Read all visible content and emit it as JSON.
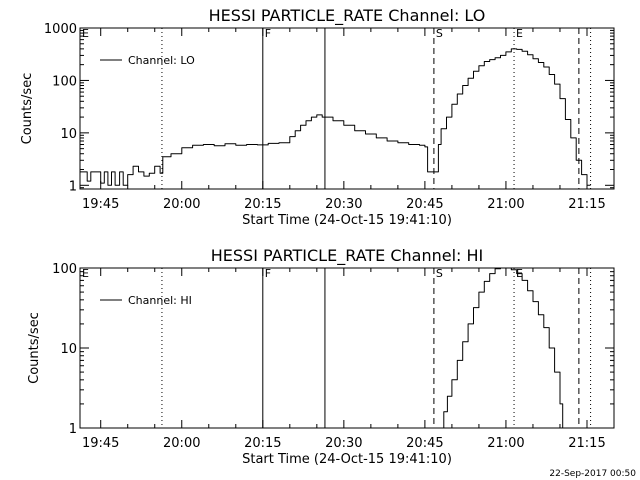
{
  "footer": {
    "timestamp": "22-Sep-2017 00:50"
  },
  "chart_data": [
    {
      "type": "line",
      "title": "HESSI PARTICLE_RATE Channel: LO",
      "xlabel": "Start Time (24-Oct-15 19:41:10)",
      "ylabel": "Counts/sec",
      "yscale": "log",
      "ylim": [
        0.85,
        1000
      ],
      "xlim": [
        "19:41:10",
        "21:20:00"
      ],
      "x_tick_labels": [
        "19:45",
        "20:00",
        "20:15",
        "20:30",
        "20:45",
        "21:00",
        "21:15"
      ],
      "y_tick_labels": [
        "1",
        "10",
        "100",
        "1000"
      ],
      "legend": {
        "label": "Channel: LO",
        "position": "top-left"
      },
      "markers": [
        {
          "time": "19:41:10",
          "label": "E",
          "style": "dotted"
        },
        {
          "time": "19:56:20",
          "label": "",
          "style": "dotted"
        },
        {
          "time": "20:15:00",
          "label": "F",
          "style": "solid"
        },
        {
          "time": "20:26:30",
          "label": "",
          "style": "solid"
        },
        {
          "time": "20:46:40",
          "label": "S",
          "style": "dashed"
        },
        {
          "time": "21:01:30",
          "label": "E",
          "style": "dotted"
        },
        {
          "time": "21:13:30",
          "label": "",
          "style": "dashed"
        },
        {
          "time": "21:15:40",
          "label": "",
          "style": "dotted"
        }
      ],
      "series": [
        {
          "name": "Channel: LO",
          "x": [
            "19:41:10",
            "19:42:30",
            "19:43:10",
            "19:44:00",
            "19:45:00",
            "19:45:40",
            "19:46:20",
            "19:47:00",
            "19:47:40",
            "19:48:30",
            "19:49:10",
            "19:50:00",
            "19:51:00",
            "19:52:00",
            "19:53:00",
            "19:54:00",
            "19:55:00",
            "19:56:00",
            "19:56:30",
            "19:58:00",
            "20:00:00",
            "20:02:00",
            "20:04:00",
            "20:06:00",
            "20:08:00",
            "20:10:00",
            "20:12:00",
            "20:14:00",
            "20:16:00",
            "20:18:00",
            "20:20:00",
            "20:21:00",
            "20:22:00",
            "20:23:00",
            "20:24:00",
            "20:25:00",
            "20:26:00",
            "20:28:00",
            "20:30:00",
            "20:32:00",
            "20:34:00",
            "20:36:00",
            "20:38:00",
            "20:40:00",
            "20:42:00",
            "20:44:00",
            "20:45:00",
            "20:45:30",
            "20:46:30",
            "20:47:30",
            "20:48:00",
            "20:49:00",
            "20:50:00",
            "20:51:00",
            "20:52:00",
            "20:53:00",
            "20:54:00",
            "20:55:00",
            "20:56:00",
            "20:57:00",
            "20:58:00",
            "20:59:00",
            "21:00:00",
            "21:01:00",
            "21:02:00",
            "21:03:00",
            "21:04:00",
            "21:05:00",
            "21:06:00",
            "21:07:00",
            "21:08:00",
            "21:09:00",
            "21:10:00",
            "21:11:00",
            "21:12:00",
            "21:13:00",
            "21:14:00",
            "21:15:00",
            "21:15:40"
          ],
          "y": [
            1.8,
            1.2,
            1.8,
            1.8,
            1.1,
            1.8,
            1.0,
            1.8,
            1.0,
            1.8,
            1.0,
            1.6,
            2.3,
            1.8,
            1.5,
            1.7,
            2.3,
            1.7,
            3.5,
            4.0,
            5.2,
            5.8,
            6.0,
            5.7,
            6.2,
            5.8,
            6.0,
            5.9,
            6.3,
            6.5,
            8.5,
            11,
            14,
            17,
            20,
            22,
            20,
            17,
            14,
            11,
            9.5,
            8.0,
            7.0,
            6.5,
            6.0,
            5.8,
            5.4,
            1.8,
            1.8,
            6,
            12,
            20,
            35,
            55,
            80,
            110,
            150,
            190,
            230,
            250,
            270,
            300,
            350,
            400,
            390,
            360,
            310,
            260,
            220,
            180,
            130,
            85,
            45,
            18,
            8,
            3,
            1.6,
            1.0,
            1.0
          ]
        }
      ]
    },
    {
      "type": "line",
      "title": "HESSI PARTICLE_RATE Channel: HI",
      "xlabel": "Start Time (24-Oct-15 19:41:10)",
      "ylabel": "Counts/sec",
      "yscale": "log",
      "ylim": [
        1,
        100
      ],
      "xlim": [
        "19:41:10",
        "21:20:00"
      ],
      "x_tick_labels": [
        "19:45",
        "20:00",
        "20:15",
        "20:30",
        "20:45",
        "21:00",
        "21:15"
      ],
      "y_tick_labels": [
        "1",
        "10",
        "100"
      ],
      "legend": {
        "label": "Channel: HI",
        "position": "top-left"
      },
      "markers": [
        {
          "time": "19:41:10",
          "label": "E",
          "style": "dotted"
        },
        {
          "time": "19:56:20",
          "label": "",
          "style": "dotted"
        },
        {
          "time": "20:15:00",
          "label": "F",
          "style": "solid"
        },
        {
          "time": "20:26:30",
          "label": "",
          "style": "solid"
        },
        {
          "time": "20:46:40",
          "label": "S",
          "style": "dashed"
        },
        {
          "time": "21:01:30",
          "label": "E",
          "style": "dotted"
        },
        {
          "time": "21:13:30",
          "label": "",
          "style": "dashed"
        },
        {
          "time": "21:15:40",
          "label": "",
          "style": "dotted"
        }
      ],
      "series": [
        {
          "name": "Channel: HI",
          "x": [
            "20:47:40",
            "20:48:30",
            "20:49:10",
            "20:50:00",
            "20:51:00",
            "20:52:00",
            "20:53:00",
            "20:54:00",
            "20:55:00",
            "20:56:00",
            "20:57:00",
            "20:58:00",
            "20:59:00",
            "21:00:00",
            "21:01:00",
            "21:02:00",
            "21:03:00",
            "21:04:00",
            "21:05:00",
            "21:06:00",
            "21:07:00",
            "21:08:00",
            "21:09:00",
            "21:10:00",
            "21:10:30"
          ],
          "y": [
            1.0,
            1.6,
            2.5,
            4,
            7,
            12,
            20,
            32,
            50,
            68,
            85,
            98,
            100,
            100,
            95,
            85,
            70,
            52,
            38,
            26,
            18,
            10,
            5,
            2,
            1.0
          ]
        }
      ]
    }
  ]
}
